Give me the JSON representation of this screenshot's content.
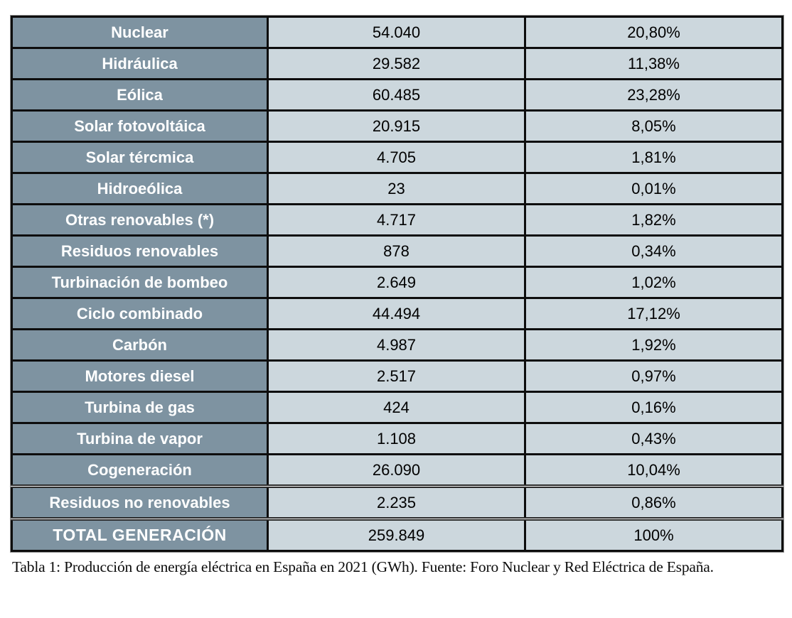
{
  "caption": "Tabla 1: Producción de energía eléctrica en España en 2021 (GWh). Fuente: Foro Nuclear y Red Eléctrica de España.",
  "colors": {
    "label_bg": "#7e93a1",
    "value_bg": "#ccd7dd",
    "border": "#0d0d0d",
    "label_text": "#ffffff",
    "value_text": "#000000"
  },
  "table": {
    "unit": "GWh",
    "rows": [
      {
        "label": "Nuclear",
        "gwh": "54.040",
        "percent": "20,80%"
      },
      {
        "label": "Hidráulica",
        "gwh": "29.582",
        "percent": "11,38%"
      },
      {
        "label": "Eólica",
        "gwh": "60.485",
        "percent": "23,28%"
      },
      {
        "label": "Solar fotovoltáica",
        "gwh": "20.915",
        "percent": "8,05%"
      },
      {
        "label": "Solar tércmica",
        "gwh": "4.705",
        "percent": "1,81%"
      },
      {
        "label": "Hidroeólica",
        "gwh": "23",
        "percent": "0,01%"
      },
      {
        "label": "Otras renovables (*)",
        "gwh": "4.717",
        "percent": "1,82%"
      },
      {
        "label": "Residuos renovables",
        "gwh": "878",
        "percent": "0,34%"
      },
      {
        "label": "Turbinación de bombeo",
        "gwh": "2.649",
        "percent": "1,02%"
      },
      {
        "label": "Ciclo combinado",
        "gwh": "44.494",
        "percent": "17,12%"
      },
      {
        "label": "Carbón",
        "gwh": "4.987",
        "percent": "1,92%"
      },
      {
        "label": "Motores diesel",
        "gwh": "2.517",
        "percent": "0,97%"
      },
      {
        "label": "Turbina de gas",
        "gwh": "424",
        "percent": "0,16%"
      },
      {
        "label": "Turbina de vapor",
        "gwh": "1.108",
        "percent": "0,43%"
      },
      {
        "label": "Cogeneración",
        "gwh": "26.090",
        "percent": "10,04%"
      },
      {
        "label": "Residuos no renovables",
        "gwh": "2.235",
        "percent": "0,86%"
      },
      {
        "label": "TOTAL GENERACIÓN",
        "gwh": "259.849",
        "percent": "100%"
      }
    ]
  }
}
